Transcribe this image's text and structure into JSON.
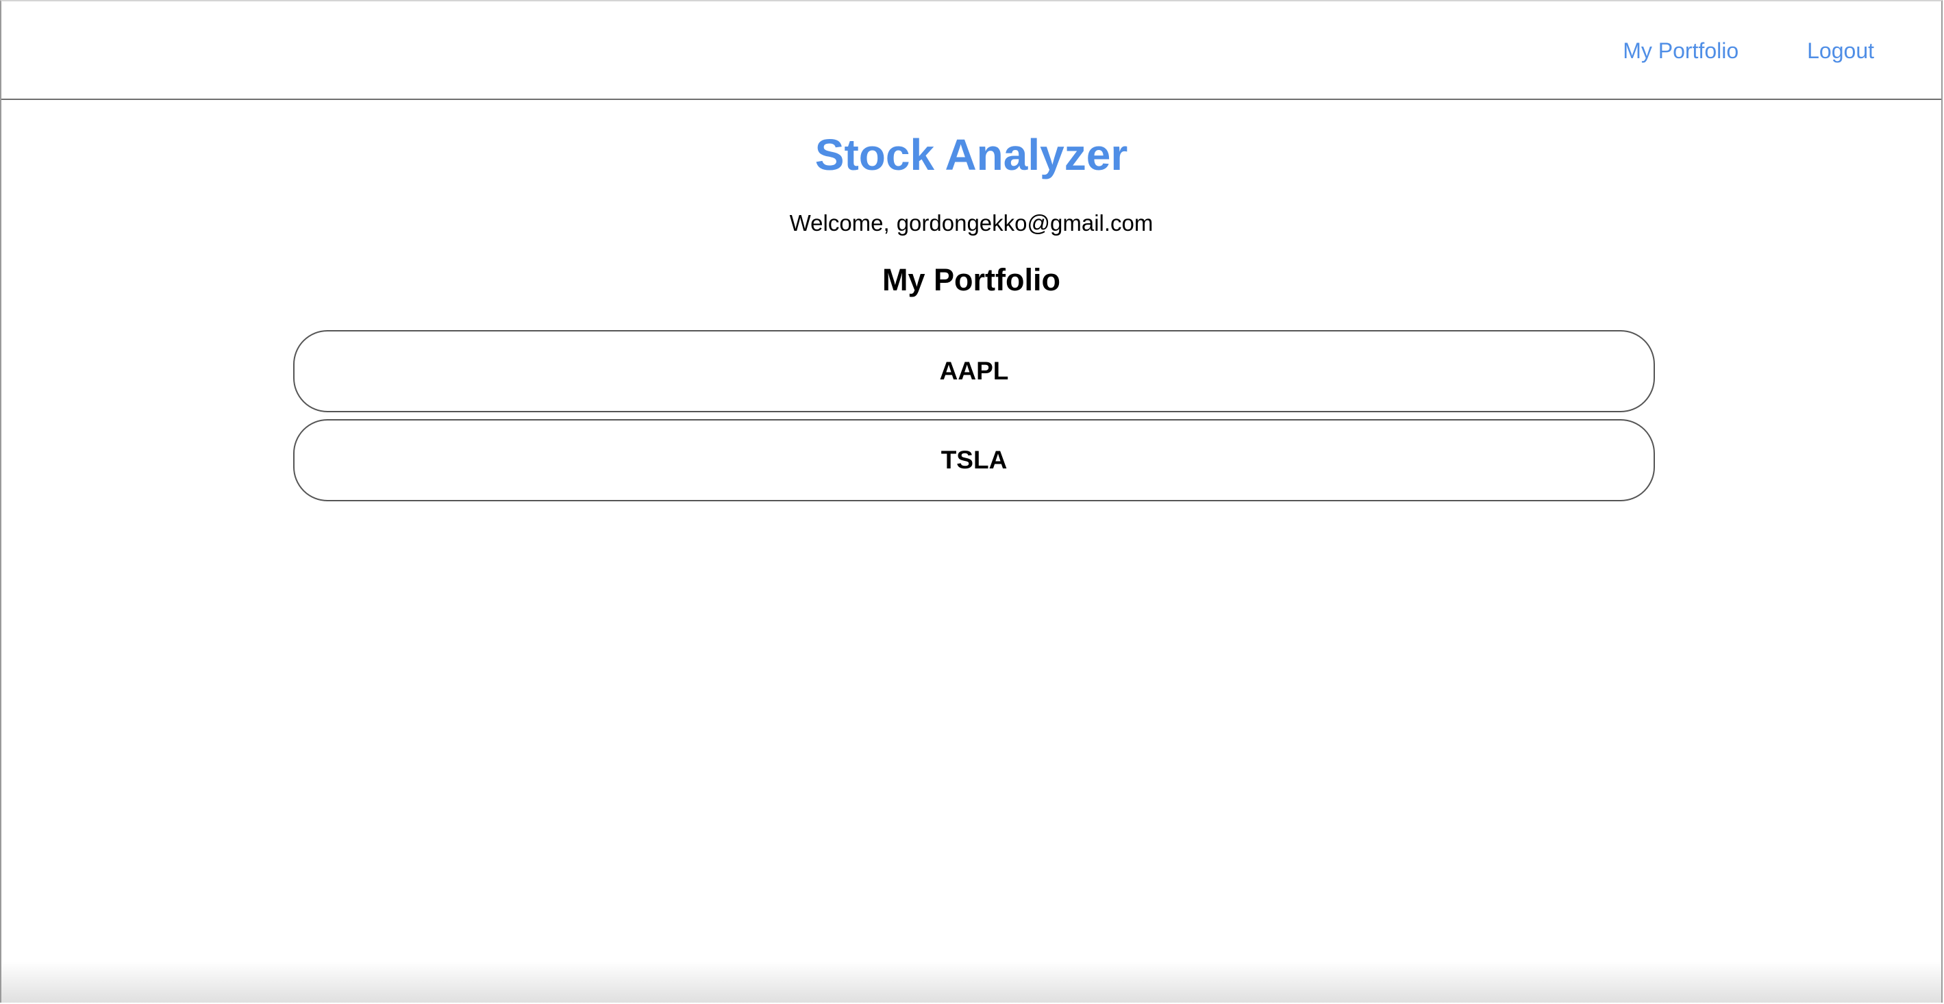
{
  "nav": {
    "links": [
      "My Portfolio",
      "Logout"
    ]
  },
  "main": {
    "title": "Stock Analyzer",
    "welcome_prefix": "Welcome,",
    "user_email": "gordongekko@gmail.com",
    "section_title": "My Portfolio",
    "stocks": [
      "AAPL",
      "TSLA"
    ]
  },
  "colors": {
    "accent": "#4f8ee6",
    "text": "#000000",
    "border": "#555555"
  }
}
